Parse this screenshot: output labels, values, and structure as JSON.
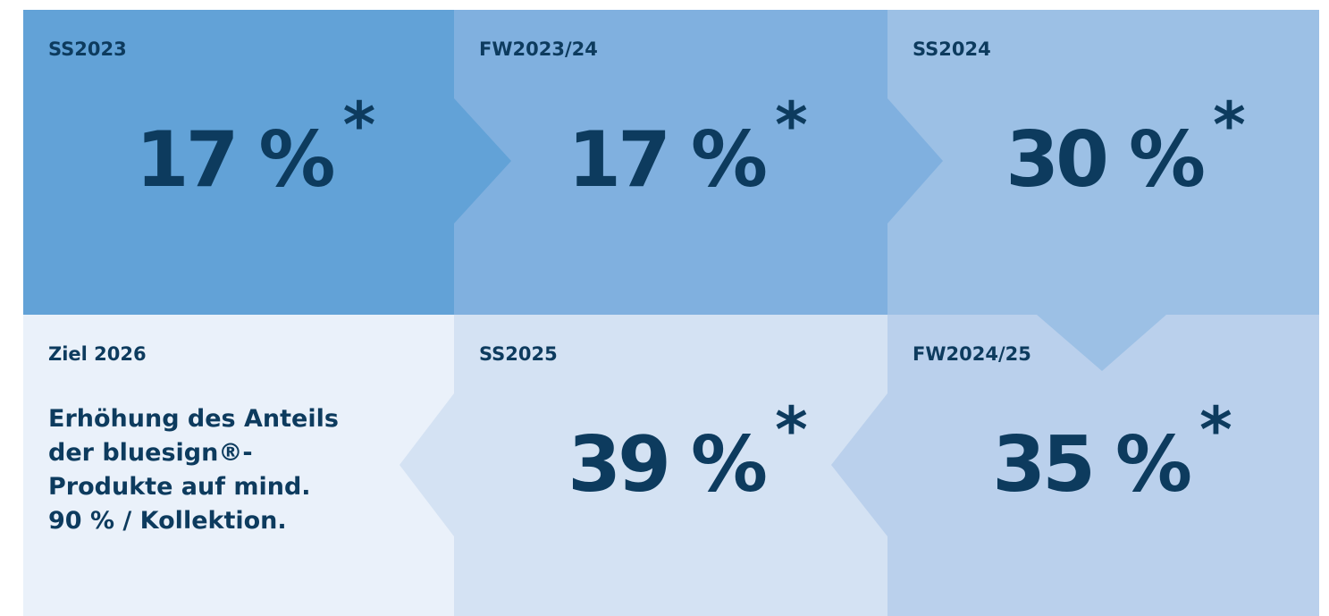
{
  "tiles": [
    {
      "label": "SS2023",
      "value": "17 %",
      "note": "*"
    },
    {
      "label": "FW2023/24",
      "value": "17 %",
      "note": "*"
    },
    {
      "label": "SS2024",
      "value": "30 %",
      "note": "*"
    },
    {
      "label": "FW2024/25",
      "value": "35 %",
      "note": "*"
    },
    {
      "label": "SS2025",
      "value": "39 %",
      "note": "*"
    }
  ],
  "goal": {
    "label": "Ziel 2026",
    "lines": [
      "Erhöhung des Anteils",
      "der bluesign®-",
      "Produkte auf mind.",
      "90 % / Kollektion."
    ]
  }
}
